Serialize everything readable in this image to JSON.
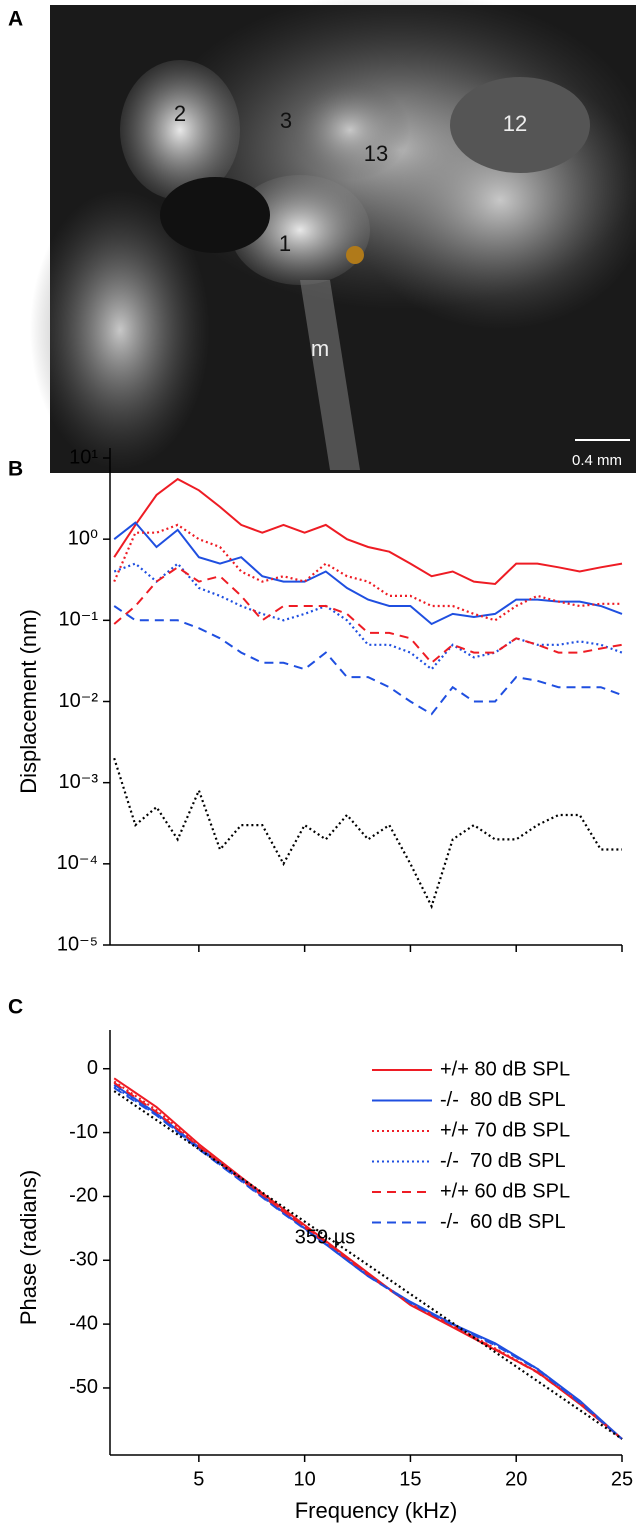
{
  "photo": {
    "panel": "A",
    "labels": [
      "2",
      "3",
      "13",
      "12",
      "1",
      "m"
    ],
    "scale_bar": "0.4 mm"
  },
  "chart_data": [
    {
      "type": "line",
      "panel": "B",
      "y_label": "Displacement (nm)",
      "log_y": true,
      "ylim": [
        1e-05,
        10
      ],
      "yticks": [
        {
          "value": 10,
          "label": "10¹"
        },
        {
          "value": 1,
          "label": "10⁰"
        },
        {
          "value": 0.1,
          "label": "10⁻¹"
        },
        {
          "value": 0.01,
          "label": "10⁻²"
        },
        {
          "value": 0.001,
          "label": "10⁻³"
        },
        {
          "value": 0.0001,
          "label": "10⁻⁴"
        },
        {
          "value": 1e-05,
          "label": "10⁻⁵"
        }
      ],
      "xlim": [
        0.8,
        25
      ],
      "x": [
        1,
        2,
        3,
        4,
        5,
        6,
        7,
        8,
        9,
        10,
        11,
        12,
        13,
        14,
        15,
        16,
        17,
        18,
        19,
        20,
        21,
        22,
        23,
        24,
        25
      ],
      "series": [
        {
          "color": "#ee1c24",
          "dash": "solid",
          "values": [
            0.6,
            1.5,
            3.5,
            5.5,
            4,
            2.5,
            1.5,
            1.2,
            1.5,
            1.2,
            1.5,
            1.0,
            0.8,
            0.7,
            0.5,
            0.35,
            0.4,
            0.3,
            0.28,
            0.5,
            0.5,
            0.45,
            0.4,
            0.45,
            0.5
          ]
        },
        {
          "color": "#1f4fe0",
          "dash": "solid",
          "values": [
            1.0,
            1.6,
            0.8,
            1.3,
            0.6,
            0.5,
            0.6,
            0.35,
            0.3,
            0.3,
            0.4,
            0.25,
            0.18,
            0.15,
            0.15,
            0.09,
            0.12,
            0.11,
            0.12,
            0.18,
            0.18,
            0.17,
            0.17,
            0.15,
            0.12
          ]
        },
        {
          "color": "#ee1c24",
          "dash": "dotted",
          "values": [
            0.3,
            1.2,
            1.2,
            1.5,
            1.0,
            0.8,
            0.4,
            0.3,
            0.35,
            0.3,
            0.5,
            0.35,
            0.3,
            0.2,
            0.2,
            0.15,
            0.15,
            0.12,
            0.1,
            0.15,
            0.2,
            0.17,
            0.15,
            0.16,
            0.16
          ]
        },
        {
          "color": "#1f4fe0",
          "dash": "dotted",
          "values": [
            0.4,
            0.5,
            0.3,
            0.5,
            0.25,
            0.2,
            0.15,
            0.12,
            0.1,
            0.12,
            0.15,
            0.1,
            0.05,
            0.05,
            0.04,
            0.025,
            0.05,
            0.035,
            0.04,
            0.06,
            0.05,
            0.05,
            0.055,
            0.05,
            0.04
          ]
        },
        {
          "color": "#ee1c24",
          "dash": "dashed",
          "values": [
            0.09,
            0.15,
            0.3,
            0.45,
            0.3,
            0.35,
            0.2,
            0.1,
            0.15,
            0.15,
            0.15,
            0.12,
            0.07,
            0.07,
            0.06,
            0.03,
            0.05,
            0.04,
            0.04,
            0.06,
            0.05,
            0.04,
            0.04,
            0.045,
            0.05
          ]
        },
        {
          "color": "#1f4fe0",
          "dash": "dashed",
          "values": [
            0.15,
            0.1,
            0.1,
            0.1,
            0.08,
            0.06,
            0.04,
            0.03,
            0.03,
            0.025,
            0.04,
            0.02,
            0.02,
            0.015,
            0.01,
            0.007,
            0.015,
            0.01,
            0.01,
            0.02,
            0.018,
            0.015,
            0.015,
            0.015,
            0.012
          ]
        },
        {
          "color": "#000000",
          "dash": "dotted",
          "values": [
            0.002,
            0.0003,
            0.0005,
            0.0002,
            0.0008,
            0.00015,
            0.0003,
            0.0003,
            0.0001,
            0.0003,
            0.0002,
            0.0004,
            0.0002,
            0.0003,
            0.0001,
            3e-05,
            0.0002,
            0.0003,
            0.0002,
            0.0002,
            0.0003,
            0.0004,
            0.0004,
            0.00015,
            0.00015
          ]
        }
      ]
    },
    {
      "type": "line",
      "panel": "C",
      "y_label": "Phase (radians)",
      "x_label": "Frequency (kHz)",
      "ylim": [
        -60.5,
        4.5
      ],
      "yticks": [
        0,
        -10,
        -20,
        -30,
        -40,
        -50
      ],
      "xlim": [
        0.8,
        25
      ],
      "xticks": [
        5,
        10,
        15,
        20,
        25
      ],
      "x": [
        1,
        3,
        5,
        7,
        9,
        11,
        13,
        15,
        17,
        19,
        21,
        23,
        25
      ],
      "annotation": "359 µs",
      "series": [
        {
          "name": "+/+ 80 dB SPL",
          "color": "#ee1c24",
          "dash": "solid",
          "values": [
            -1.5,
            -6,
            -11.8,
            -17,
            -22,
            -27,
            -32,
            -37,
            -40.5,
            -44,
            -47.5,
            -52.5,
            -58
          ]
        },
        {
          "name": "-/-  80 dB SPL",
          "color": "#1f4fe0",
          "dash": "solid",
          "values": [
            -2.5,
            -7,
            -12.3,
            -17.3,
            -22.5,
            -27.5,
            -32.5,
            -36.5,
            -40,
            -43,
            -47,
            -52,
            -58
          ]
        },
        {
          "name": "+/+ 70 dB SPL",
          "color": "#ee1c24",
          "dash": "dotted",
          "values": [
            -2,
            -6.5,
            -12,
            -17.2,
            -22.3,
            -27.2,
            -32.2,
            -36.8,
            -40.2,
            -43.8,
            -47.5,
            -52.3,
            -58
          ]
        },
        {
          "name": "-/-  70 dB SPL",
          "color": "#1f4fe0",
          "dash": "dotted",
          "values": [
            -2.8,
            -7.2,
            -12.5,
            -17.5,
            -22.6,
            -27.4,
            -32.4,
            -36.6,
            -40,
            -43.2,
            -47,
            -52.2,
            -58
          ]
        },
        {
          "name": "+/+ 60 dB SPL",
          "color": "#ee1c24",
          "dash": "dashed",
          "values": [
            -2.2,
            -6.8,
            -12.2,
            -17.4,
            -22.4,
            -27.3,
            -32.3,
            -36.9,
            -40.3,
            -43.9,
            -47.6,
            -52.4,
            -58
          ]
        },
        {
          "name": "-/-  60 dB SPL",
          "color": "#1f4fe0",
          "dash": "dashed",
          "values": [
            -3,
            -7.3,
            -12.6,
            -17.6,
            -22.7,
            -27.5,
            -32.5,
            -36.7,
            -40.1,
            -43.3,
            -47.1,
            -52.3,
            -58
          ]
        },
        {
          "color": "#000000",
          "dash": "dotted",
          "x": [
            1,
            25
          ],
          "values": [
            -3.5,
            -58
          ]
        }
      ]
    }
  ]
}
